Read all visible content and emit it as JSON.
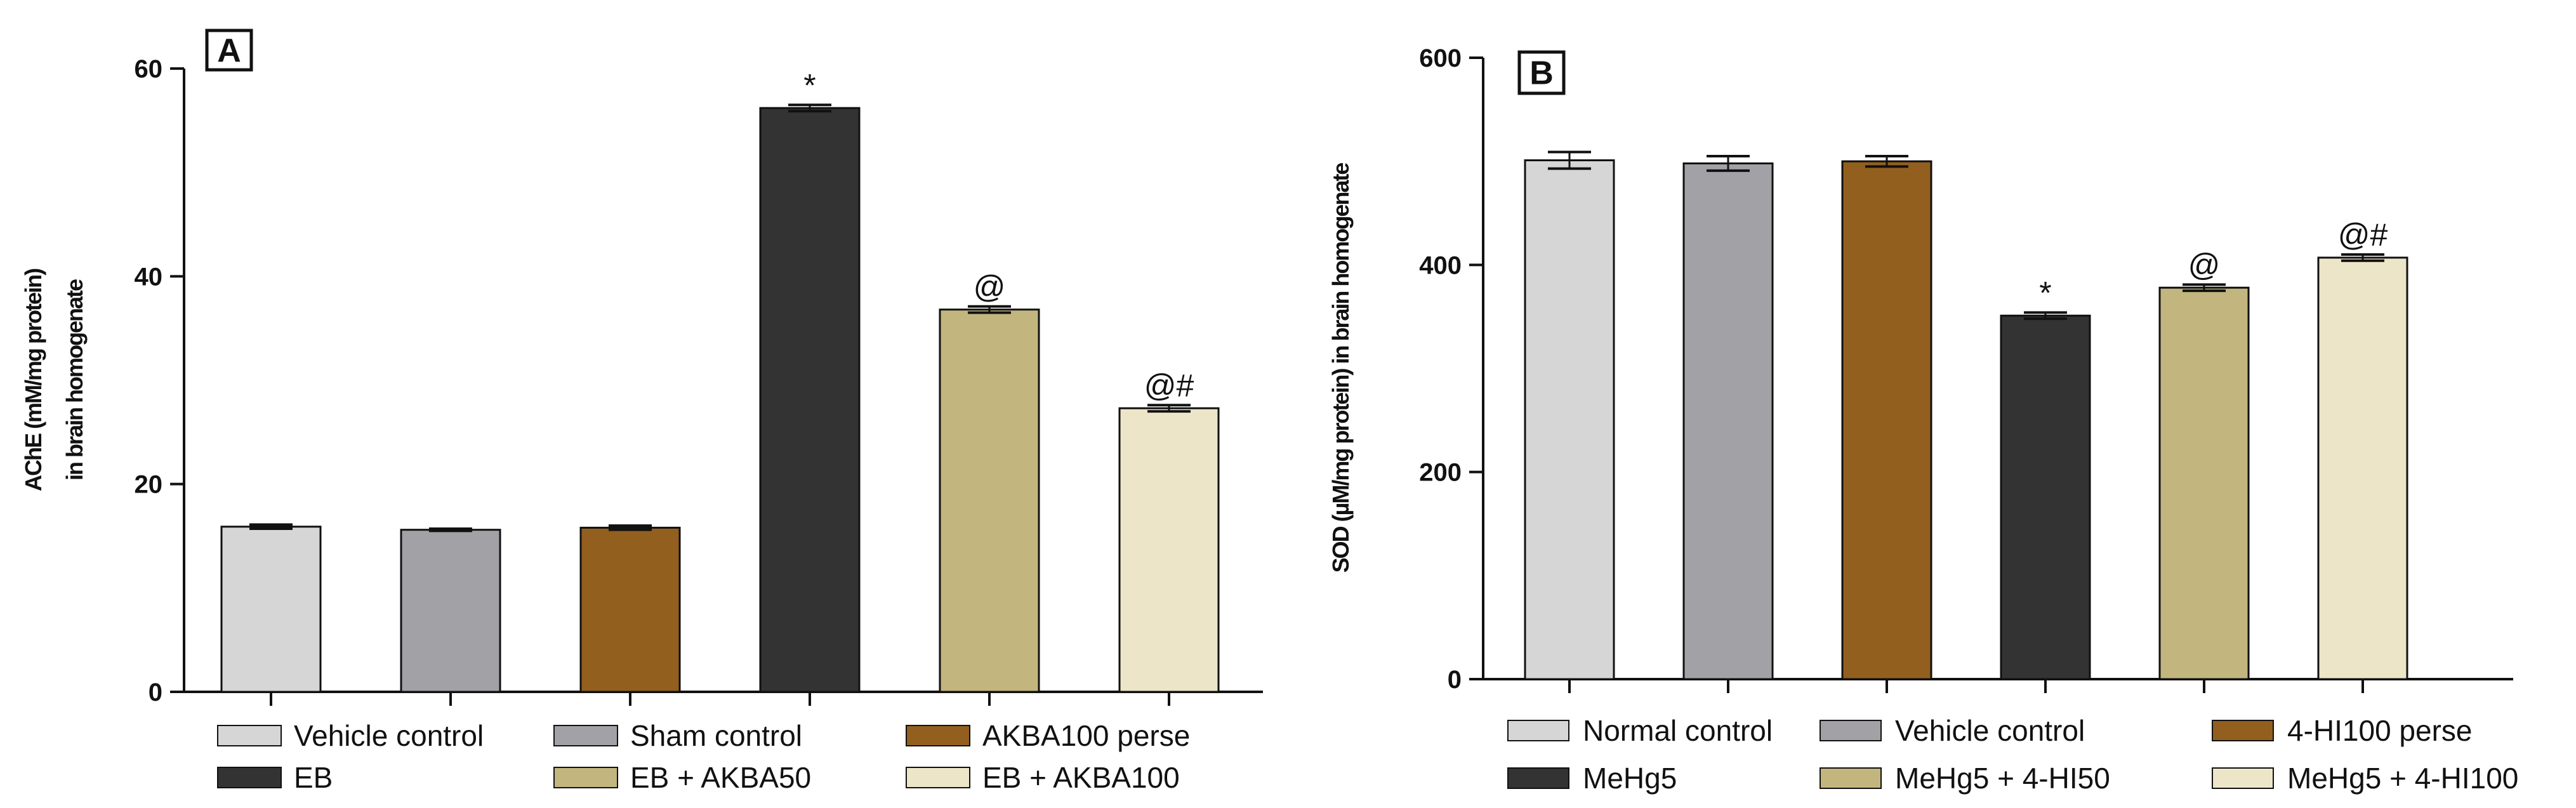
{
  "chart_data": [
    {
      "panel_label": "A",
      "type": "bar",
      "ylabel_line1": "AChE (mM/mg protein)",
      "ylabel_line2": "in brain homogenate",
      "xlabel": "",
      "ylim": [
        0,
        60
      ],
      "yticks": [
        0,
        20,
        40,
        60
      ],
      "categories": [
        "Vehicle control",
        "Sham control",
        "AKBA100 perse",
        "EB",
        "EB + AKBA50",
        "EB + AKBA100"
      ],
      "values": [
        15.9,
        15.6,
        15.8,
        56.2,
        36.8,
        27.3
      ],
      "errors": [
        0.2,
        0.1,
        0.2,
        0.3,
        0.3,
        0.3
      ],
      "annotations": [
        "",
        "",
        "",
        "*",
        "@",
        "@#"
      ],
      "colors": [
        "#d6d6d6",
        "#a2a1a6",
        "#935f1f",
        "#333333",
        "#c2b67e",
        "#ece5c8"
      ],
      "legend_rows": [
        [
          0,
          1,
          2
        ],
        [
          3,
          4,
          5
        ]
      ]
    },
    {
      "panel_label": "B",
      "type": "bar",
      "ylabel_line1": "SOD (µM/mg protein) in brain homogenate",
      "ylabel_line2": "",
      "xlabel": "",
      "ylim": [
        0,
        600
      ],
      "yticks": [
        0,
        200,
        400,
        600
      ],
      "categories": [
        "Normal control",
        "Vehicle control",
        "4-HI100 perse",
        "MeHg5",
        "MeHg5 + 4-HI50",
        "MeHg5 + 4-HI100"
      ],
      "values": [
        501,
        498,
        500,
        351,
        378,
        407
      ],
      "errors": [
        8,
        7,
        5,
        3,
        3,
        3
      ],
      "annotations": [
        "",
        "",
        "",
        "*",
        "@",
        "@#"
      ],
      "colors": [
        "#d6d6d6",
        "#a2a1a6",
        "#935f1f",
        "#333333",
        "#c2b67e",
        "#ece5c8"
      ],
      "legend_rows": [
        [
          0,
          1,
          2
        ],
        [
          3,
          4,
          5
        ]
      ]
    }
  ]
}
